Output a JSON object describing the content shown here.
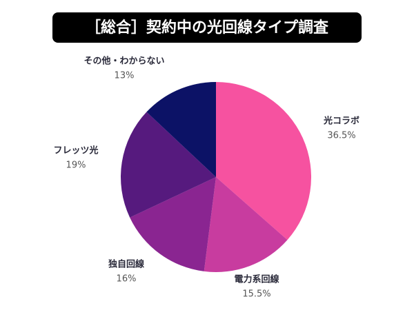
{
  "chart_data": {
    "type": "pie",
    "title": "［総合］契約中の光回線タイプ調査",
    "categories": [
      "光コラボ",
      "電力系回線",
      "独自回線",
      "フレッツ光",
      "その他・わからない"
    ],
    "values": [
      36.5,
      15.5,
      16,
      19,
      13
    ],
    "value_labels": [
      "36.5%",
      "15.5%",
      "16%",
      "19%",
      "13%"
    ],
    "colors": [
      "#f652a0",
      "#c83c9f",
      "#8a2591",
      "#561a7e",
      "#0c1266"
    ]
  }
}
